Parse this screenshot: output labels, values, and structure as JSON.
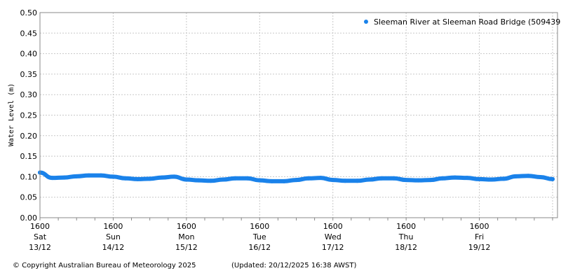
{
  "chart_data": {
    "type": "line",
    "title": "",
    "xlabel": "",
    "ylabel": "Water Level (m)",
    "ylim": [
      0,
      0.5
    ],
    "yticks": [
      "0.00",
      "0.05",
      "0.10",
      "0.15",
      "0.20",
      "0.25",
      "0.30",
      "0.35",
      "0.40",
      "0.45",
      "0.50"
    ],
    "xlim": [
      "2025-12-13T16:00",
      "2025-12-20T16:00"
    ],
    "xticks": [
      {
        "time": "1600",
        "day": "Sat",
        "date": "13/12"
      },
      {
        "time": "1600",
        "day": "Sun",
        "date": "14/12"
      },
      {
        "time": "1600",
        "day": "Mon",
        "date": "15/12"
      },
      {
        "time": "1600",
        "day": "Tue",
        "date": "16/12"
      },
      {
        "time": "1600",
        "day": "Wed",
        "date": "17/12"
      },
      {
        "time": "1600",
        "day": "Thu",
        "date": "18/12"
      },
      {
        "time": "1600",
        "day": "Fri",
        "date": "19/12"
      }
    ],
    "grid": true,
    "legend_position": "top-right",
    "series": [
      {
        "name": "Sleeman River at Sleeman Road Bridge (509439)",
        "color": "#1a82ea",
        "x": [
          "2025-12-13T16:00",
          "2025-12-13T20:00",
          "2025-12-14T00:00",
          "2025-12-14T04:00",
          "2025-12-14T08:00",
          "2025-12-14T12:00",
          "2025-12-14T16:00",
          "2025-12-14T20:00",
          "2025-12-15T00:00",
          "2025-12-15T04:00",
          "2025-12-15T08:00",
          "2025-12-15T12:00",
          "2025-12-15T16:00",
          "2025-12-15T20:00",
          "2025-12-16T00:00",
          "2025-12-16T04:00",
          "2025-12-16T08:00",
          "2025-12-16T12:00",
          "2025-12-16T16:00",
          "2025-12-16T20:00",
          "2025-12-17T00:00",
          "2025-12-17T04:00",
          "2025-12-17T08:00",
          "2025-12-17T12:00",
          "2025-12-17T16:00",
          "2025-12-17T20:00",
          "2025-12-18T00:00",
          "2025-12-18T04:00",
          "2025-12-18T08:00",
          "2025-12-18T12:00",
          "2025-12-18T16:00",
          "2025-12-18T20:00",
          "2025-12-19T00:00",
          "2025-12-19T04:00",
          "2025-12-19T08:00",
          "2025-12-19T12:00",
          "2025-12-19T16:00",
          "2025-12-19T20:00",
          "2025-12-20T00:00",
          "2025-12-20T04:00",
          "2025-12-20T08:00",
          "2025-12-20T12:00",
          "2025-12-20T16:00"
        ],
        "y": [
          0.11,
          0.097,
          0.098,
          0.101,
          0.103,
          0.103,
          0.1,
          0.096,
          0.094,
          0.095,
          0.098,
          0.1,
          0.093,
          0.091,
          0.09,
          0.093,
          0.096,
          0.096,
          0.091,
          0.089,
          0.089,
          0.092,
          0.096,
          0.097,
          0.092,
          0.09,
          0.09,
          0.093,
          0.096,
          0.096,
          0.092,
          0.091,
          0.092,
          0.096,
          0.098,
          0.097,
          0.094,
          0.093,
          0.095,
          0.101,
          0.102,
          0.099,
          0.094
        ]
      }
    ]
  },
  "footer": {
    "copyright": "© Copyright Australian Bureau of Meteorology 2025",
    "updated": "(Updated: 20/12/2025 16:38 AWST)"
  }
}
